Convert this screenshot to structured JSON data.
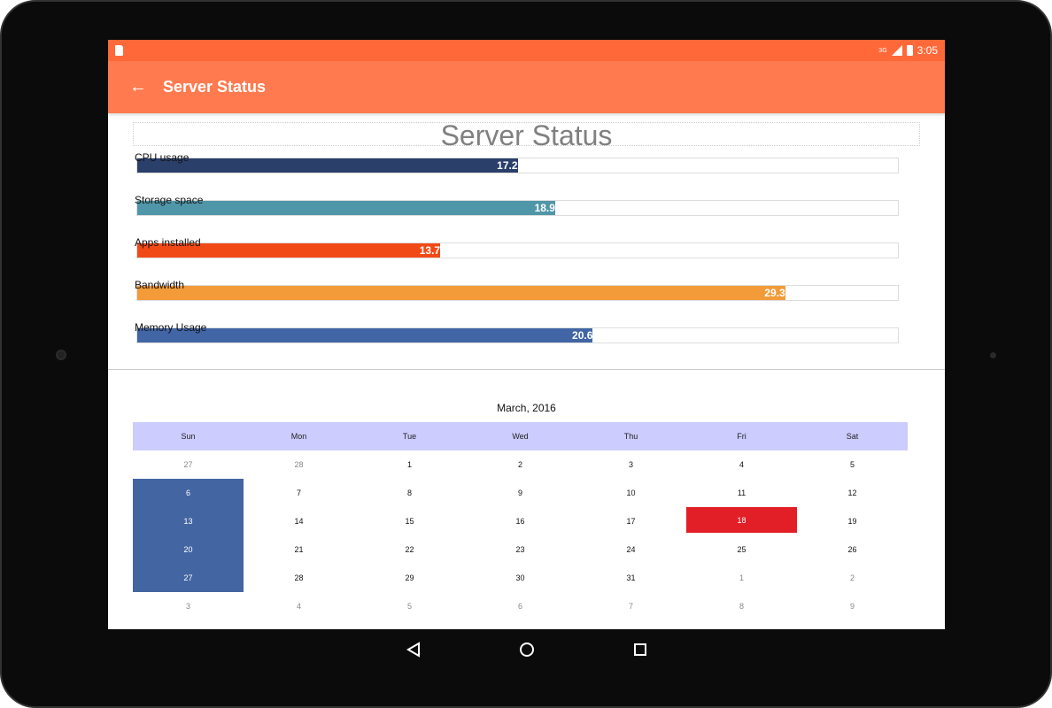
{
  "status_bar": {
    "network": "3G",
    "time": "3:05"
  },
  "app_bar": {
    "title": "Server Status",
    "back_icon": "arrow-left-icon"
  },
  "chart_data": {
    "type": "bar",
    "orientation": "horizontal",
    "title": "Server Status",
    "categories": [
      "CPU usage",
      "Storage space",
      "Apps installed",
      "Bandwidth",
      "Memory Usage"
    ],
    "values": [
      17.2,
      18.9,
      13.7,
      29.3,
      20.6
    ],
    "value_labels": [
      "17.2",
      "18.9",
      "13.7",
      "29.3",
      "20.6"
    ],
    "colors": [
      "#2b3f6b",
      "#4f96a8",
      "#f24a16",
      "#f29b38",
      "#4165a5"
    ],
    "xlim": [
      0,
      34.4
    ]
  },
  "calendar": {
    "title": "March, 2016",
    "weekdays": [
      "Sun",
      "Mon",
      "Tue",
      "Wed",
      "Thu",
      "Fri",
      "Sat"
    ],
    "weeks": [
      [
        "27",
        "28",
        "1",
        "2",
        "3",
        "4",
        "5"
      ],
      [
        "6",
        "7",
        "8",
        "9",
        "10",
        "11",
        "12"
      ],
      [
        "13",
        "14",
        "15",
        "16",
        "17",
        "18",
        "19"
      ],
      [
        "20",
        "21",
        "22",
        "23",
        "24",
        "25",
        "26"
      ],
      [
        "27",
        "28",
        "29",
        "30",
        "31",
        "1",
        "2"
      ],
      [
        "3",
        "4",
        "5",
        "6",
        "7",
        "8",
        "9"
      ]
    ],
    "selected_color": "#4365a2",
    "today": "18",
    "today_color": "#e21e26",
    "header_color": "#ccccff"
  },
  "theme": {
    "status_bar": "#ff6838",
    "app_bar": "#ff7a4f"
  }
}
